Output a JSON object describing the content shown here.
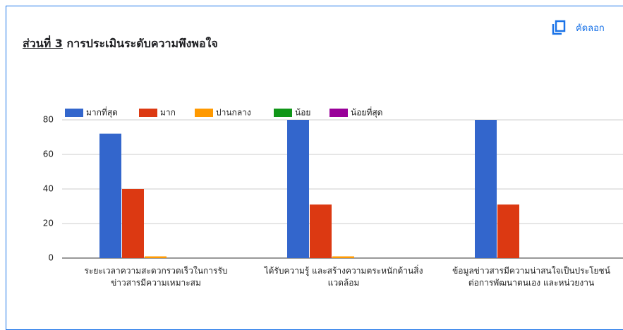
{
  "header": {
    "title_part": "ส่วนที่ 3",
    "title_rest": "การประเมินระดับความพึงพอใจ",
    "copy_label": "คัดลอก"
  },
  "chart_data": {
    "type": "bar",
    "categories": [
      "ระยะเวลาความสะดวกรวดเร็วในการรับ\nข่าวสารมีความเหมาะสม",
      "ได้รับความรู้ และสร้างความตระหนักด้านสิ่ง\nแวดล้อม",
      "ข้อมูลข่าวสารมีความน่าสนใจเป็นประโยชน์\nต่อการพัฒนาตนเอง และหน่วยงาน"
    ],
    "series": [
      {
        "name": "มากที่สุด",
        "color": "#3366cc",
        "values": [
          72,
          80,
          80
        ]
      },
      {
        "name": "มาก",
        "color": "#dc3912",
        "values": [
          40,
          31,
          31
        ]
      },
      {
        "name": "ปานกลาง",
        "color": "#ff9900",
        "values": [
          1,
          1,
          0
        ]
      },
      {
        "name": "น้อย",
        "color": "#109618",
        "values": [
          0,
          0,
          0
        ]
      },
      {
        "name": "น้อยที่สุด",
        "color": "#990099",
        "values": [
          0,
          0,
          0
        ]
      }
    ],
    "ylim": [
      0,
      80
    ],
    "yticks": [
      0,
      20,
      40,
      60,
      80
    ],
    "grid": true,
    "legend": "top"
  }
}
